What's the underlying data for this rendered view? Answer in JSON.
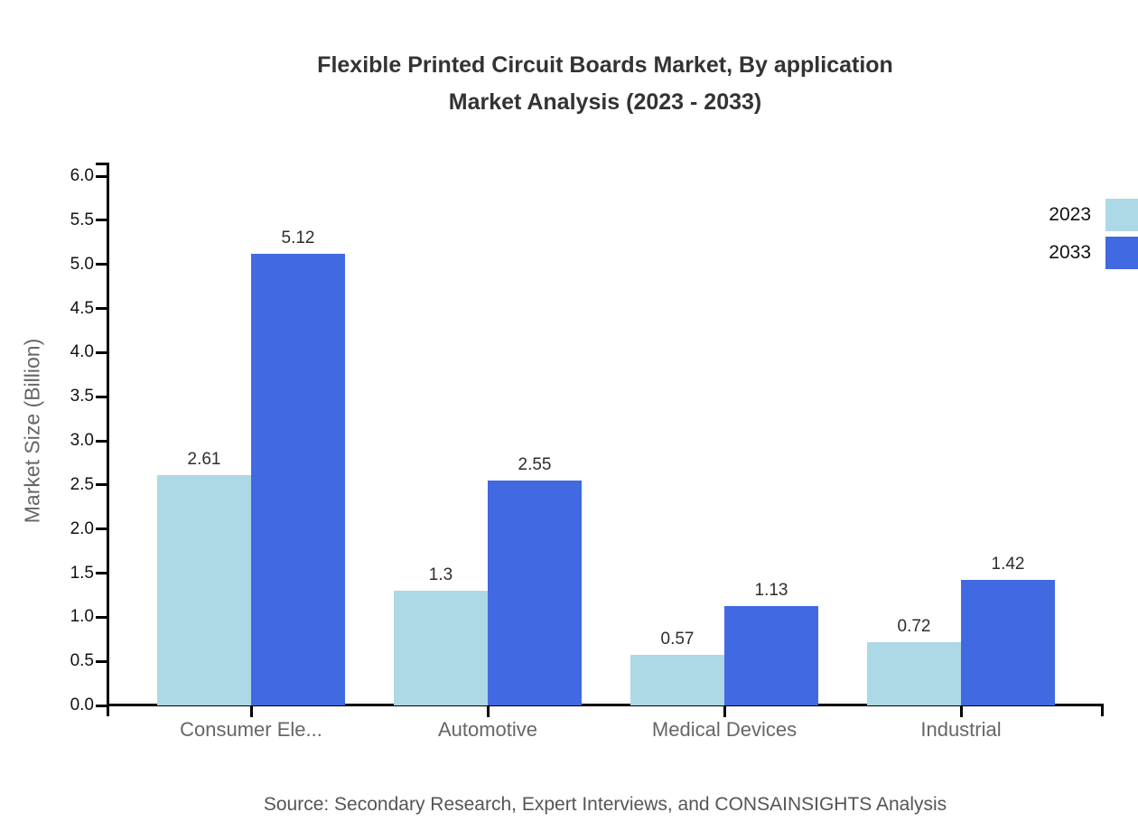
{
  "chart_data": {
    "type": "bar",
    "title": "Flexible Printed Circuit Boards Market, By application",
    "subtitle": "Market Analysis (2023 - 2033)",
    "categories": [
      "Consumer Ele...",
      "Automotive",
      "Medical Devices",
      "Industrial"
    ],
    "series": [
      {
        "name": "2023",
        "color": "#ADD8E6",
        "values": [
          2.61,
          1.3,
          0.57,
          0.72
        ],
        "labels": [
          "2.61",
          "1.3",
          "0.57",
          "0.72"
        ]
      },
      {
        "name": "2033",
        "color": "#4169E1",
        "values": [
          5.12,
          2.55,
          1.13,
          1.42
        ],
        "labels": [
          "5.12",
          "2.55",
          "1.13",
          "1.42"
        ]
      }
    ],
    "xlabel": "",
    "ylabel": "Market Size (Billion)",
    "ylim": [
      0,
      6
    ],
    "ytick_step": 0.5,
    "yticks": [
      "0.0",
      "0.5",
      "1.0",
      "1.5",
      "2.0",
      "2.5",
      "3.0",
      "3.5",
      "4.0",
      "4.5",
      "5.0",
      "5.5",
      "6.0"
    ],
    "grid": false,
    "legend_position": "top-right",
    "axis_color": "#000000",
    "source": "Source: Secondary Research, Expert Interviews, and CONSAINSIGHTS Analysis"
  }
}
